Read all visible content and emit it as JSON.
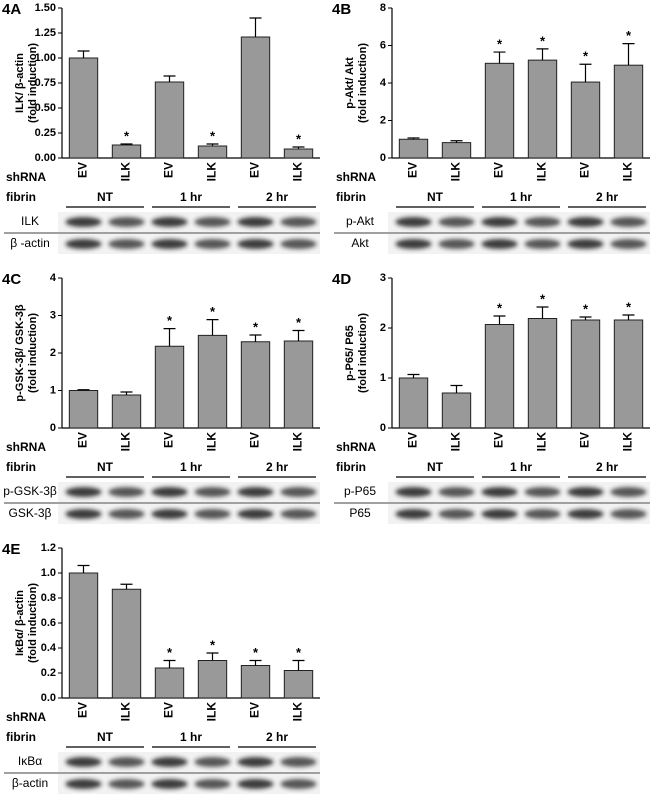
{
  "chart_data": [
    {
      "type": "bar",
      "panel": "4A",
      "y_label": [
        "ILK/ β-actin",
        "(fold induction)"
      ],
      "ylim": [
        0,
        1.5
      ],
      "yticks": [
        {
          "value": 0,
          "label": "0.00"
        },
        0.25,
        {
          "value": 0.5,
          "label": "0.50"
        },
        0.75,
        {
          "value": 1,
          "label": "1.00"
        },
        1.25,
        {
          "value": 1.5,
          "label": "1.50"
        }
      ],
      "categories": [
        "EV",
        "ILK",
        "EV",
        "ILK",
        "EV",
        "ILK"
      ],
      "values": [
        1.0,
        0.13,
        0.76,
        0.12,
        1.21,
        0.09
      ],
      "errors": [
        0.07,
        0.01,
        0.06,
        0.02,
        0.19,
        0.02
      ],
      "color": "#999999",
      "significant": [
        false,
        true,
        false,
        true,
        false,
        true
      ],
      "significance_label": "*",
      "x_label": "shRNA",
      "group_label": "fibrin",
      "groups": [
        "NT",
        "1 hr",
        "2 hr"
      ],
      "blot_labels": [
        "ILK",
        "β -actin"
      ]
    },
    {
      "type": "bar",
      "panel": "4B",
      "y_label": [
        "p-Akt/ Akt",
        "(fold induction)"
      ],
      "ylim": [
        0,
        8
      ],
      "yticks": [
        0,
        2,
        4,
        6,
        8
      ],
      "categories": [
        "EV",
        "ILK",
        "EV",
        "ILK",
        "EV",
        "ILK"
      ],
      "values": [
        1.0,
        0.82,
        5.05,
        5.22,
        4.05,
        4.95
      ],
      "errors": [
        0.07,
        0.1,
        0.6,
        0.6,
        0.95,
        1.15
      ],
      "color": "#999999",
      "significant": [
        false,
        false,
        true,
        true,
        true,
        true
      ],
      "significance_label": "*",
      "x_label": "shRNA",
      "group_label": "fibrin",
      "groups": [
        "NT",
        "1 hr",
        "2 hr"
      ],
      "blot_labels": [
        "p-Akt",
        "Akt"
      ]
    },
    {
      "type": "bar",
      "panel": "4C",
      "y_label": [
        "p-GSK-3β/ GSK-3β",
        "(fold induction)"
      ],
      "ylim": [
        0,
        4
      ],
      "yticks": [
        0,
        1,
        2,
        3,
        4
      ],
      "categories": [
        "EV",
        "ILK",
        "EV",
        "ILK",
        "EV",
        "ILK"
      ],
      "values": [
        1.0,
        0.88,
        2.18,
        2.47,
        2.3,
        2.32
      ],
      "errors": [
        0.02,
        0.08,
        0.47,
        0.42,
        0.18,
        0.28
      ],
      "color": "#999999",
      "significant": [
        false,
        false,
        true,
        true,
        true,
        true
      ],
      "significance_label": "*",
      "x_label": "shRNA",
      "group_label": "fibrin",
      "groups": [
        "NT",
        "1 hr",
        "2 hr"
      ],
      "blot_labels": [
        "p-GSK-3β",
        "GSK-3β"
      ]
    },
    {
      "type": "bar",
      "panel": "4D",
      "y_label": [
        "p-P65/ P65",
        "(fold induction)"
      ],
      "ylim": [
        0,
        3
      ],
      "yticks": [
        0,
        1,
        2,
        3
      ],
      "categories": [
        "EV",
        "ILK",
        "EV",
        "ILK",
        "EV",
        "ILK"
      ],
      "values": [
        1.0,
        0.7,
        2.07,
        2.19,
        2.16,
        2.16
      ],
      "errors": [
        0.07,
        0.15,
        0.17,
        0.23,
        0.06,
        0.1
      ],
      "color": "#999999",
      "significant": [
        false,
        false,
        true,
        true,
        true,
        true
      ],
      "significance_label": "*",
      "x_label": "shRNA",
      "group_label": "fibrin",
      "groups": [
        "NT",
        "1 hr",
        "2 hr"
      ],
      "blot_labels": [
        "p-P65",
        "P65"
      ]
    },
    {
      "type": "bar",
      "panel": "4E",
      "y_label": [
        "IκBα/ β-actin",
        "(fold induction)"
      ],
      "ylim": [
        0,
        1.2
      ],
      "yticks": [
        {
          "value": 0,
          "label": "0.0"
        },
        0.2,
        0.4,
        0.6,
        0.8,
        {
          "value": 1,
          "label": "1.0"
        },
        1.2
      ],
      "categories": [
        "EV",
        "ILK",
        "EV",
        "ILK",
        "EV",
        "ILK"
      ],
      "values": [
        1.0,
        0.87,
        0.24,
        0.3,
        0.26,
        0.22
      ],
      "errors": [
        0.06,
        0.04,
        0.06,
        0.06,
        0.04,
        0.08
      ],
      "color": "#999999",
      "significant": [
        false,
        false,
        true,
        true,
        true,
        true
      ],
      "significance_label": "*",
      "x_label": "shRNA",
      "group_label": "fibrin",
      "groups": [
        "NT",
        "1 hr",
        "2 hr"
      ],
      "blot_labels": [
        "IκBα",
        "β-actin"
      ]
    }
  ]
}
